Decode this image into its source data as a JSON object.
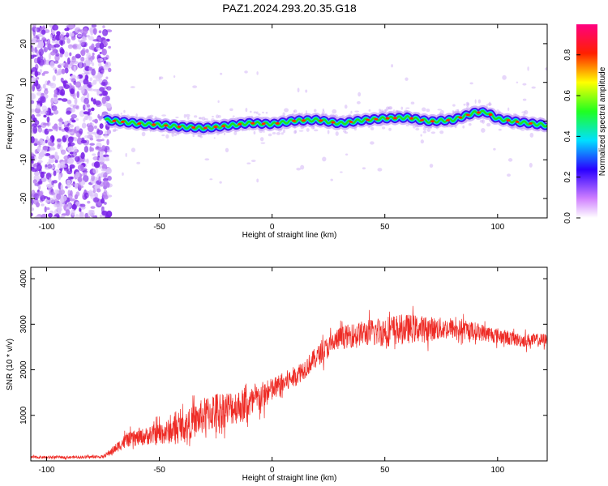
{
  "title": "PAZ1.2024.293.20.35.G18",
  "colors": {
    "snr_line": "#ee2a24",
    "axis": "#000000"
  },
  "chart_data": [
    {
      "type": "heatmap",
      "xlabel": "Height of straight line (km)",
      "ylabel": "Frequency (Hz)",
      "xlim": [
        -107,
        122
      ],
      "ylim": [
        -25,
        25
      ],
      "xticks": [
        -100,
        -50,
        0,
        50,
        100
      ],
      "xtick_labels": [
        "-100",
        "-50",
        "0",
        "50",
        "100"
      ],
      "yticks": [
        -20,
        -10,
        0,
        10,
        20
      ],
      "ytick_labels": [
        "-20",
        "-10",
        "0",
        "10",
        "20"
      ],
      "ridge": {
        "x": [
          -74,
          -60,
          -50,
          -40,
          -30,
          -20,
          -10,
          0,
          10,
          20,
          30,
          40,
          50,
          60,
          70,
          80,
          90,
          95,
          100,
          110,
          122
        ],
        "y": [
          0.3,
          -0.6,
          -1.0,
          -1.5,
          -1.8,
          -1.2,
          -0.5,
          -0.8,
          0.1,
          0.3,
          -0.6,
          0.2,
          0.7,
          0.9,
          -0.1,
          0.3,
          2.2,
          2.3,
          0.6,
          -0.3,
          -1.1
        ]
      },
      "noise_region_x": [
        -107,
        -72
      ],
      "colorbar": {
        "label": "Normalized spectral amplitude",
        "range": [
          0,
          0.95
        ],
        "ticks": [
          0.0,
          0.2,
          0.4,
          0.6,
          0.8
        ],
        "tick_labels": [
          "0.0",
          "0.2",
          "0.4",
          "0.6",
          "0.8"
        ]
      }
    },
    {
      "type": "line",
      "xlabel": "Height of straight line (km)",
      "ylabel": "SNR (10 * v/v)",
      "xlim": [
        -107,
        122
      ],
      "ylim": [
        0,
        4250
      ],
      "xticks": [
        -100,
        -50,
        0,
        50,
        100
      ],
      "xtick_labels": [
        "-100",
        "-50",
        "0",
        "50",
        "100"
      ],
      "yticks": [
        1000,
        2000,
        3000,
        4000
      ],
      "ytick_labels": [
        "1000",
        "2000",
        "3000",
        "4000"
      ],
      "series": [
        {
          "x": [
            -107,
            -90,
            -75,
            -70,
            -65,
            -60,
            -55,
            -50,
            -45,
            -40,
            -35,
            -30,
            -25,
            -20,
            -15,
            -10,
            -5,
            0,
            5,
            10,
            15,
            20,
            25,
            30,
            40,
            50,
            60,
            70,
            80,
            90,
            100,
            110,
            122
          ],
          "y": [
            80,
            80,
            90,
            250,
            450,
            500,
            550,
            600,
            650,
            750,
            850,
            1000,
            1100,
            1150,
            1200,
            1250,
            1400,
            1550,
            1700,
            1850,
            2050,
            2300,
            2500,
            2700,
            2800,
            2850,
            2900,
            2900,
            2900,
            2850,
            2750,
            2650,
            2650
          ],
          "spread": [
            60,
            60,
            70,
            200,
            300,
            350,
            400,
            500,
            550,
            600,
            700,
            800,
            850,
            800,
            750,
            700,
            650,
            550,
            500,
            450,
            450,
            450,
            500,
            500,
            550,
            700,
            650,
            550,
            450,
            400,
            350,
            300,
            300
          ]
        }
      ]
    }
  ]
}
